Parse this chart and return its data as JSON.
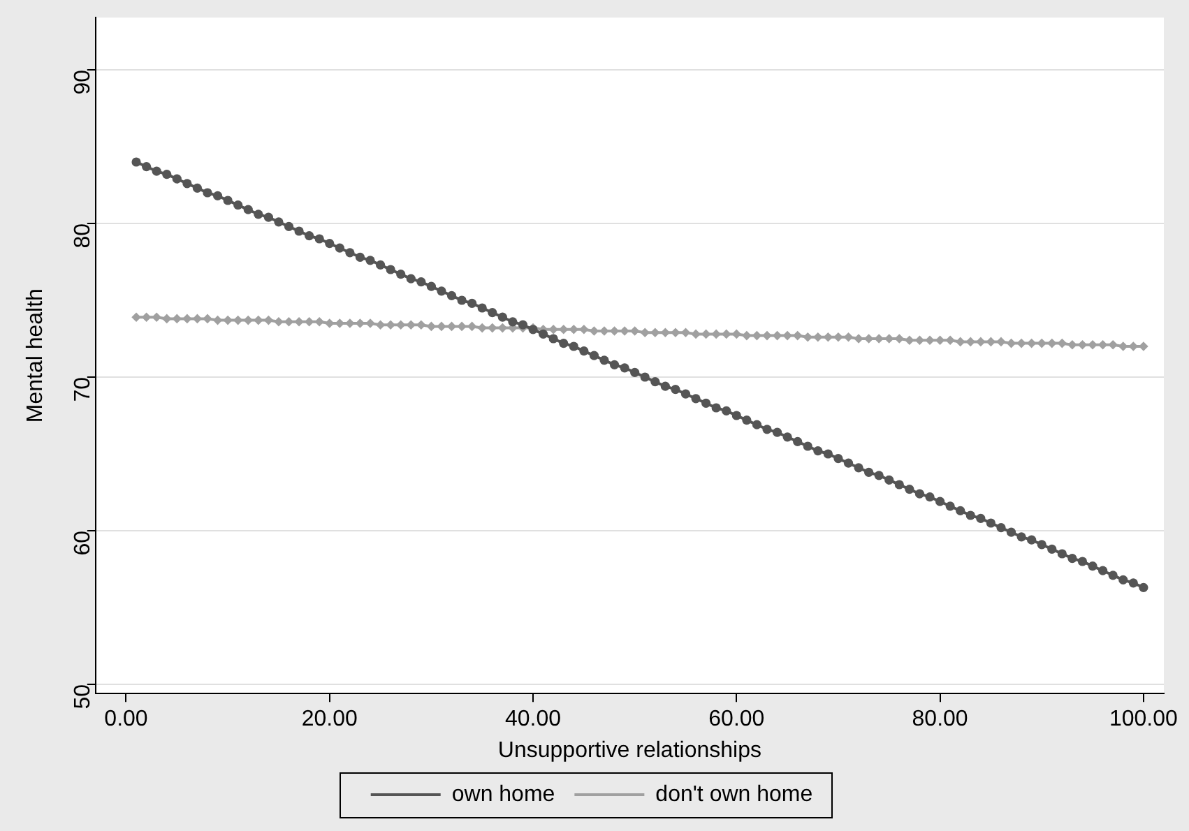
{
  "chart_data": {
    "type": "line",
    "xlabel": "Unsupportive relationships",
    "ylabel": "Mental health",
    "x": [
      1,
      2,
      3,
      4,
      5,
      6,
      7,
      8,
      9,
      10,
      11,
      12,
      13,
      14,
      15,
      16,
      17,
      18,
      19,
      20,
      21,
      22,
      23,
      24,
      25,
      26,
      27,
      28,
      29,
      30,
      31,
      32,
      33,
      34,
      35,
      36,
      37,
      38,
      39,
      40,
      41,
      42,
      43,
      44,
      45,
      46,
      47,
      48,
      49,
      50,
      51,
      52,
      53,
      54,
      55,
      56,
      57,
      58,
      59,
      60,
      61,
      62,
      63,
      64,
      65,
      66,
      67,
      68,
      69,
      70,
      71,
      72,
      73,
      74,
      75,
      76,
      77,
      78,
      79,
      80,
      81,
      82,
      83,
      84,
      85,
      86,
      87,
      88,
      89,
      90,
      91,
      92,
      93,
      94,
      95,
      96,
      97,
      98,
      99,
      100
    ],
    "series": [
      {
        "name": "own home",
        "color": "#555555",
        "marker": "circle",
        "values": [
          84.0,
          83.7,
          83.4,
          83.2,
          82.9,
          82.6,
          82.3,
          82.0,
          81.8,
          81.5,
          81.2,
          80.9,
          80.6,
          80.4,
          80.1,
          79.8,
          79.5,
          79.2,
          79.0,
          78.7,
          78.4,
          78.1,
          77.8,
          77.6,
          77.3,
          77.0,
          76.7,
          76.4,
          76.2,
          75.9,
          75.6,
          75.3,
          75.0,
          74.8,
          74.5,
          74.2,
          73.9,
          73.6,
          73.4,
          73.1,
          72.8,
          72.5,
          72.2,
          72.0,
          71.7,
          71.4,
          71.1,
          70.8,
          70.6,
          70.3,
          70.0,
          69.7,
          69.4,
          69.2,
          68.9,
          68.6,
          68.3,
          68.0,
          67.8,
          67.5,
          67.2,
          66.9,
          66.6,
          66.4,
          66.1,
          65.8,
          65.5,
          65.2,
          65.0,
          64.7,
          64.4,
          64.1,
          63.8,
          63.6,
          63.3,
          63.0,
          62.7,
          62.4,
          62.2,
          61.9,
          61.6,
          61.3,
          61.0,
          60.8,
          60.5,
          60.2,
          59.9,
          59.6,
          59.4,
          59.1,
          58.8,
          58.5,
          58.2,
          58.0,
          57.7,
          57.4,
          57.1,
          56.8,
          56.6,
          56.3
        ]
      },
      {
        "name": "don't own home",
        "color": "#a0a0a0",
        "marker": "diamond",
        "values": [
          73.9,
          73.9,
          73.9,
          73.8,
          73.8,
          73.8,
          73.8,
          73.8,
          73.7,
          73.7,
          73.7,
          73.7,
          73.7,
          73.7,
          73.6,
          73.6,
          73.6,
          73.6,
          73.6,
          73.5,
          73.5,
          73.5,
          73.5,
          73.5,
          73.4,
          73.4,
          73.4,
          73.4,
          73.4,
          73.3,
          73.3,
          73.3,
          73.3,
          73.3,
          73.2,
          73.2,
          73.2,
          73.2,
          73.2,
          73.2,
          73.1,
          73.1,
          73.1,
          73.1,
          73.1,
          73.0,
          73.0,
          73.0,
          73.0,
          73.0,
          72.9,
          72.9,
          72.9,
          72.9,
          72.9,
          72.8,
          72.8,
          72.8,
          72.8,
          72.8,
          72.7,
          72.7,
          72.7,
          72.7,
          72.7,
          72.7,
          72.6,
          72.6,
          72.6,
          72.6,
          72.6,
          72.5,
          72.5,
          72.5,
          72.5,
          72.5,
          72.4,
          72.4,
          72.4,
          72.4,
          72.4,
          72.3,
          72.3,
          72.3,
          72.3,
          72.3,
          72.2,
          72.2,
          72.2,
          72.2,
          72.2,
          72.2,
          72.1,
          72.1,
          72.1,
          72.1,
          72.1,
          72.0,
          72.0,
          72.0
        ]
      }
    ],
    "xlim": [
      -3,
      102
    ],
    "xticks": [
      {
        "value": 0,
        "label": "0.00"
      },
      {
        "value": 20,
        "label": "20.00"
      },
      {
        "value": 40,
        "label": "40.00"
      },
      {
        "value": 60,
        "label": "60.00"
      },
      {
        "value": 80,
        "label": "80.00"
      },
      {
        "value": 100,
        "label": "100.00"
      }
    ],
    "ylim": [
      49.4,
      93.4
    ],
    "yticks": [
      50,
      60,
      70,
      80,
      90
    ],
    "grid": "y",
    "legend": "bottom",
    "line_style": "solid"
  }
}
